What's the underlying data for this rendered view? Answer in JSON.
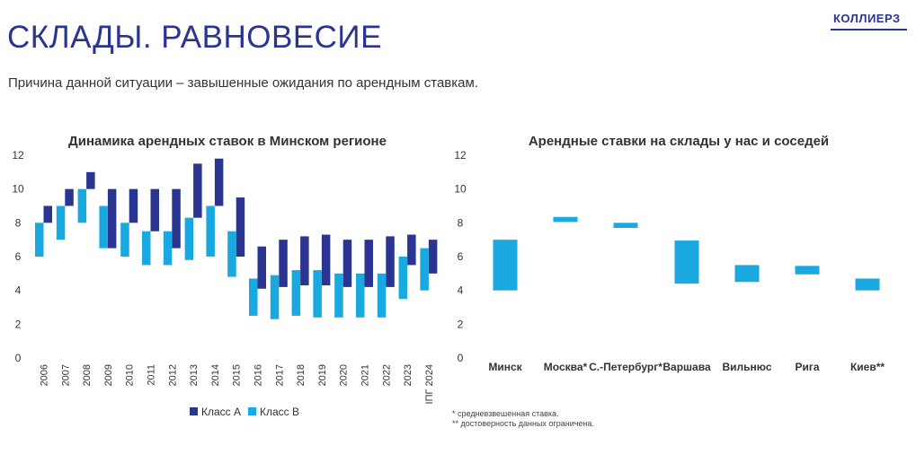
{
  "header": {
    "title": "СКЛАДЫ. РАВНОВЕСИЕ",
    "subtitle": "Причина данной ситуации – завышенные ожидания по арендным ставкам.",
    "logo": "КОЛЛИЕРЗ"
  },
  "colors": {
    "class_a": "#2a3591",
    "class_b": "#1aa8e0",
    "brand": "#2a3591"
  },
  "footnotes": [
    "* средневзвешенная ставка.",
    "** достоверность данных ограничена."
  ],
  "chart_data": [
    {
      "type": "bar",
      "subtype": "floating-range",
      "title": "Динамика арендных ставок в Минском регионе",
      "ylim": [
        0,
        12
      ],
      "yticks": [
        "0",
        "2",
        "4",
        "6",
        "8",
        "10",
        "12"
      ],
      "categories": [
        "2006",
        "2007",
        "2008",
        "2009",
        "2010",
        "2011",
        "2012",
        "2013",
        "2014",
        "2015",
        "2016",
        "2017",
        "2018",
        "2019",
        "2020",
        "2021",
        "2022",
        "2023",
        "IПГ 2024"
      ],
      "legend_position": "bottom",
      "series": [
        {
          "name": "Класс А",
          "color": "#2a3591",
          "low": [
            8.0,
            9.0,
            10.0,
            6.5,
            8.0,
            7.5,
            6.5,
            8.3,
            9.0,
            6.0,
            4.1,
            4.2,
            4.3,
            4.3,
            4.2,
            4.2,
            4.2,
            5.5,
            5.0
          ],
          "high": [
            9.0,
            10.0,
            11.0,
            10.0,
            10.0,
            10.0,
            10.0,
            11.5,
            11.8,
            9.5,
            6.6,
            7.0,
            7.2,
            7.3,
            7.0,
            7.0,
            7.2,
            7.3,
            7.0
          ]
        },
        {
          "name": "Класс В",
          "color": "#1aa8e0",
          "low": [
            6.0,
            7.0,
            8.0,
            6.5,
            6.0,
            5.5,
            5.5,
            5.8,
            6.0,
            4.8,
            2.5,
            2.3,
            2.5,
            2.4,
            2.4,
            2.4,
            2.4,
            3.5,
            4.0
          ],
          "high": [
            8.0,
            9.0,
            10.0,
            9.0,
            8.0,
            7.5,
            7.5,
            8.3,
            9.0,
            7.5,
            4.7,
            4.9,
            5.2,
            5.2,
            5.0,
            5.0,
            5.0,
            6.0,
            6.5
          ]
        }
      ]
    },
    {
      "type": "bar",
      "subtype": "floating-range",
      "title": "Арендные ставки на склады у нас и соседей",
      "ylim": [
        0,
        12
      ],
      "yticks": [
        "0",
        "2",
        "4",
        "6",
        "8",
        "10",
        "12"
      ],
      "categories": [
        "Минск",
        "Москва*",
        "С.-Петербург*",
        "Варшава",
        "Вильнюс",
        "Рига",
        "Киев**"
      ],
      "series": [
        {
          "color": "#1aa8e0",
          "low": [
            4.0,
            8.05,
            7.7,
            4.4,
            4.5,
            4.95,
            4.0
          ],
          "high": [
            7.0,
            8.35,
            8.0,
            6.95,
            5.5,
            5.45,
            4.7
          ]
        }
      ]
    }
  ]
}
